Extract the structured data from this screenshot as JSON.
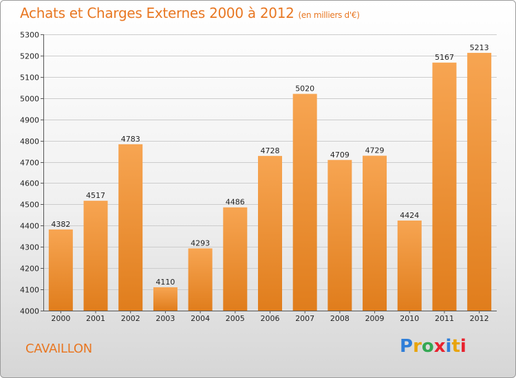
{
  "title": "Achats et Charges Externes 2000 à 2012",
  "subtitle": "(en milliers d'€)",
  "town": "CAVAILLON",
  "logo": {
    "text": "Proxiti",
    "letter_colors": [
      "#2f7ed8",
      "#e8a40c",
      "#34a853",
      "#e8222e",
      "#2f7ed8",
      "#e8a40c",
      "#e8222e"
    ]
  },
  "colors": {
    "bar_top": "#f7a552",
    "bar_bottom": "#e07d1c",
    "accent": "#e87722",
    "grid": "#cccccc"
  },
  "chart_data": {
    "type": "bar",
    "title": "Achats et Charges Externes 2000 à 2012",
    "subtitle": "(en milliers d'€)",
    "xlabel": "",
    "ylabel": "",
    "categories": [
      "2000",
      "2001",
      "2002",
      "2003",
      "2004",
      "2005",
      "2006",
      "2007",
      "2008",
      "2009",
      "2010",
      "2011",
      "2012"
    ],
    "values": [
      4382,
      4517,
      4783,
      4110,
      4293,
      4486,
      4728,
      5020,
      4709,
      4729,
      4424,
      5167,
      5213
    ],
    "ylim": [
      4000,
      5300
    ],
    "yticks": [
      4000,
      4100,
      4200,
      4300,
      4400,
      4500,
      4600,
      4700,
      4800,
      4900,
      5000,
      5100,
      5200,
      5300
    ],
    "grid": true,
    "legend": "none"
  }
}
